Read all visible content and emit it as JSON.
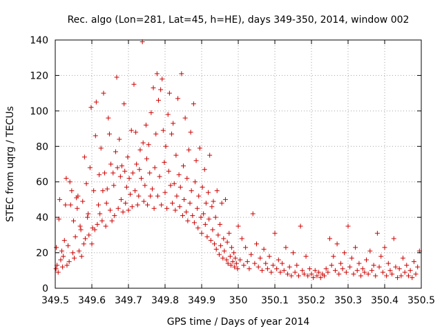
{
  "chart_data": {
    "type": "scatter",
    "title": "Rec. algo (Lon=281, Lat=45, h=HE), days 349-350, 2014, window 002",
    "xlabel": "GPS time / Days of year 2014",
    "ylabel": "STEC from uqrg / TECUs",
    "xlim": [
      349.5,
      350.5
    ],
    "ylim": [
      0,
      140
    ],
    "x_ticks": [
      "349.5",
      "349.6",
      "349.7",
      "349.8",
      "349.9",
      "350",
      "350.1",
      "350.2",
      "350.3",
      "350.4",
      "350.5"
    ],
    "y_ticks": [
      "0",
      "20",
      "40",
      "60",
      "80",
      "100",
      "120",
      "140"
    ],
    "grid": true,
    "marker": "+",
    "marker_color": "#cc0000",
    "series": [
      {
        "points": [
          [
            349.502,
            11
          ],
          [
            349.503,
            23
          ],
          [
            349.505,
            13
          ],
          [
            349.508,
            9
          ],
          [
            349.51,
            39
          ],
          [
            349.512,
            50
          ],
          [
            349.515,
            16
          ],
          [
            349.518,
            21
          ],
          [
            349.52,
            12
          ],
          [
            349.522,
            18
          ],
          [
            349.525,
            27
          ],
          [
            349.528,
            47
          ],
          [
            349.53,
            62
          ],
          [
            349.532,
            13
          ],
          [
            349.535,
            24
          ],
          [
            349.538,
            15
          ],
          [
            349.54,
            60
          ],
          [
            349.542,
            47
          ],
          [
            349.545,
            55
          ],
          [
            349.548,
            20
          ],
          [
            349.55,
            38
          ],
          [
            349.552,
            17
          ],
          [
            349.555,
            29
          ],
          [
            349.558,
            51
          ],
          [
            349.56,
            45
          ],
          [
            349.562,
            52
          ],
          [
            349.565,
            21
          ],
          [
            349.568,
            35
          ],
          [
            349.57,
            33
          ],
          [
            349.572,
            18
          ],
          [
            349.575,
            49
          ],
          [
            349.578,
            25
          ],
          [
            349.58,
            74
          ],
          [
            349.582,
            28
          ],
          [
            349.585,
            59
          ],
          [
            349.588,
            40
          ],
          [
            349.59,
            42
          ],
          [
            349.592,
            30
          ],
          [
            349.595,
            68
          ],
          [
            349.598,
            102
          ],
          [
            349.6,
            25
          ],
          [
            349.602,
            34
          ],
          [
            349.605,
            55
          ],
          [
            349.608,
            33
          ],
          [
            349.61,
            86
          ],
          [
            349.612,
            105
          ],
          [
            349.615,
            36
          ],
          [
            349.618,
            47
          ],
          [
            349.62,
            64
          ],
          [
            349.622,
            42
          ],
          [
            349.625,
            79
          ],
          [
            349.628,
            38
          ],
          [
            349.63,
            55
          ],
          [
            349.632,
            110
          ],
          [
            349.635,
            65
          ],
          [
            349.638,
            35
          ],
          [
            349.64,
            48
          ],
          [
            349.642,
            56
          ],
          [
            349.645,
            96
          ],
          [
            349.648,
            87
          ],
          [
            349.65,
            44
          ],
          [
            349.652,
            70
          ],
          [
            349.655,
            38
          ],
          [
            349.658,
            65
          ],
          [
            349.66,
            58
          ],
          [
            349.662,
            41
          ],
          [
            349.665,
            77
          ],
          [
            349.668,
            119
          ],
          [
            349.67,
            68
          ],
          [
            349.672,
            45
          ],
          [
            349.675,
            84
          ],
          [
            349.678,
            63
          ],
          [
            349.68,
            50
          ],
          [
            349.682,
            69
          ],
          [
            349.685,
            43
          ],
          [
            349.688,
            104
          ],
          [
            349.69,
            66
          ],
          [
            349.692,
            48
          ],
          [
            349.695,
            57
          ],
          [
            349.698,
            74
          ],
          [
            349.7,
            44
          ],
          [
            349.702,
            62
          ],
          [
            349.705,
            53
          ],
          [
            349.708,
            89
          ],
          [
            349.71,
            46
          ],
          [
            349.712,
            65
          ],
          [
            349.715,
            115
          ],
          [
            349.718,
            55
          ],
          [
            349.72,
            88
          ],
          [
            349.722,
            70
          ],
          [
            349.725,
            47
          ],
          [
            349.728,
            52
          ],
          [
            349.73,
            67
          ],
          [
            349.732,
            78
          ],
          [
            349.735,
            62
          ],
          [
            349.738,
            139
          ],
          [
            349.74,
            82
          ],
          [
            349.742,
            49
          ],
          [
            349.745,
            58
          ],
          [
            349.748,
            92
          ],
          [
            349.75,
            73
          ],
          [
            349.752,
            47
          ],
          [
            349.755,
            81
          ],
          [
            349.758,
            65
          ],
          [
            349.76,
            52
          ],
          [
            349.762,
            99
          ],
          [
            349.765,
            56
          ],
          [
            349.768,
            113
          ],
          [
            349.77,
            45
          ],
          [
            349.772,
            68
          ],
          [
            349.775,
            87
          ],
          [
            349.778,
            121
          ],
          [
            349.78,
            52
          ],
          [
            349.782,
            106
          ],
          [
            349.785,
            63
          ],
          [
            349.788,
            112
          ],
          [
            349.79,
            47
          ],
          [
            349.792,
            118
          ],
          [
            349.795,
            89
          ],
          [
            349.798,
            71
          ],
          [
            349.8,
            54
          ],
          [
            349.802,
            80
          ],
          [
            349.805,
            45
          ],
          [
            349.808,
            98
          ],
          [
            349.81,
            66
          ],
          [
            349.812,
            110
          ],
          [
            349.815,
            58
          ],
          [
            349.818,
            87
          ],
          [
            349.82,
            48
          ],
          [
            349.822,
            93
          ],
          [
            349.825,
            59
          ],
          [
            349.828,
            44
          ],
          [
            349.83,
            75
          ],
          [
            349.832,
            52
          ],
          [
            349.835,
            107
          ],
          [
            349.838,
            64
          ],
          [
            349.84,
            46
          ],
          [
            349.842,
            57
          ],
          [
            349.845,
            121
          ],
          [
            349.848,
            41
          ],
          [
            349.85,
            69
          ],
          [
            349.852,
            50
          ],
          [
            349.855,
            96
          ],
          [
            349.858,
            43
          ],
          [
            349.86,
            62
          ],
          [
            349.862,
            38
          ],
          [
            349.865,
            78
          ],
          [
            349.868,
            48
          ],
          [
            349.87,
            88
          ],
          [
            349.872,
            55
          ],
          [
            349.875,
            41
          ],
          [
            349.878,
            104
          ],
          [
            349.88,
            37
          ],
          [
            349.882,
            60
          ],
          [
            349.885,
            72
          ],
          [
            349.888,
            45
          ],
          [
            349.89,
            34
          ],
          [
            349.892,
            52
          ],
          [
            349.895,
            79
          ],
          [
            349.898,
            40
          ],
          [
            349.9,
            31
          ],
          [
            349.902,
            57
          ],
          [
            349.905,
            42
          ],
          [
            349.908,
            67
          ],
          [
            349.91,
            36
          ],
          [
            349.912,
            48
          ],
          [
            349.915,
            29
          ],
          [
            349.918,
            54
          ],
          [
            349.92,
            39
          ],
          [
            349.922,
            75
          ],
          [
            349.925,
            27
          ],
          [
            349.928,
            46
          ],
          [
            349.93,
            33
          ],
          [
            349.932,
            49
          ],
          [
            349.935,
            25
          ],
          [
            349.938,
            40
          ],
          [
            349.94,
            22
          ],
          [
            349.942,
            55
          ],
          [
            349.945,
            30
          ],
          [
            349.948,
            19
          ],
          [
            349.95,
            36
          ],
          [
            349.952,
            24
          ],
          [
            349.955,
            48
          ],
          [
            349.958,
            17
          ],
          [
            349.96,
            28
          ],
          [
            349.962,
            21
          ],
          [
            349.965,
            50
          ],
          [
            349.968,
            16
          ],
          [
            349.97,
            26
          ],
          [
            349.972,
            14
          ],
          [
            349.975,
            31
          ],
          [
            349.978,
            18
          ],
          [
            349.98,
            13
          ],
          [
            349.982,
            23
          ],
          [
            349.985,
            15
          ],
          [
            349.988,
            20
          ],
          [
            349.99,
            12
          ],
          [
            349.992,
            17
          ],
          [
            349.995,
            14
          ],
          [
            349.998,
            11
          ],
          [
            350.0,
            35
          ],
          [
            350.005,
            16
          ],
          [
            350.01,
            28
          ],
          [
            350.015,
            13
          ],
          [
            350.02,
            23
          ],
          [
            350.025,
            15
          ],
          [
            350.03,
            11
          ],
          [
            350.035,
            19
          ],
          [
            350.04,
            42
          ],
          [
            350.045,
            14
          ],
          [
            350.05,
            25
          ],
          [
            350.055,
            12
          ],
          [
            350.06,
            17
          ],
          [
            350.065,
            10
          ],
          [
            350.07,
            22
          ],
          [
            350.075,
            14
          ],
          [
            350.08,
            11
          ],
          [
            350.085,
            18
          ],
          [
            350.09,
            9
          ],
          [
            350.095,
            13
          ],
          [
            350.1,
            31
          ],
          [
            350.105,
            11
          ],
          [
            350.11,
            16
          ],
          [
            350.115,
            9
          ],
          [
            350.12,
            14
          ],
          [
            350.125,
            10
          ],
          [
            350.13,
            23
          ],
          [
            350.135,
            8
          ],
          [
            350.14,
            12
          ],
          [
            350.145,
            7
          ],
          [
            350.15,
            20
          ],
          [
            350.155,
            9
          ],
          [
            350.16,
            13
          ],
          [
            350.165,
            7
          ],
          [
            350.17,
            35
          ],
          [
            350.175,
            10
          ],
          [
            350.18,
            8
          ],
          [
            350.185,
            18
          ],
          [
            350.19,
            7
          ],
          [
            350.195,
            11
          ],
          [
            350.2,
            8
          ],
          [
            350.205,
            6
          ],
          [
            350.21,
            10
          ],
          [
            350.215,
            7
          ],
          [
            350.22,
            9
          ],
          [
            350.225,
            6
          ],
          [
            350.23,
            8
          ],
          [
            350.235,
            7
          ],
          [
            350.24,
            11
          ],
          [
            350.245,
            9
          ],
          [
            350.25,
            28
          ],
          [
            350.255,
            13
          ],
          [
            350.26,
            18
          ],
          [
            350.265,
            10
          ],
          [
            350.27,
            25
          ],
          [
            350.275,
            8
          ],
          [
            350.28,
            14
          ],
          [
            350.285,
            11
          ],
          [
            350.29,
            20
          ],
          [
            350.295,
            9
          ],
          [
            350.3,
            35
          ],
          [
            350.305,
            12
          ],
          [
            350.31,
            17
          ],
          [
            350.315,
            8
          ],
          [
            350.32,
            23
          ],
          [
            350.325,
            10
          ],
          [
            350.33,
            14
          ],
          [
            350.335,
            7
          ],
          [
            350.34,
            11
          ],
          [
            350.345,
            9
          ],
          [
            350.35,
            16
          ],
          [
            350.355,
            8
          ],
          [
            350.36,
            21
          ],
          [
            350.365,
            10
          ],
          [
            350.37,
            13
          ],
          [
            350.375,
            7
          ],
          [
            350.38,
            31
          ],
          [
            350.385,
            12
          ],
          [
            350.39,
            18
          ],
          [
            350.395,
            9
          ],
          [
            350.4,
            23
          ],
          [
            350.405,
            7
          ],
          [
            350.41,
            14
          ],
          [
            350.415,
            10
          ],
          [
            350.42,
            8
          ],
          [
            350.425,
            28
          ],
          [
            350.43,
            12
          ],
          [
            350.435,
            6
          ],
          [
            350.44,
            11
          ],
          [
            350.445,
            7
          ],
          [
            350.45,
            17
          ],
          [
            350.455,
            9
          ],
          [
            350.46,
            13
          ],
          [
            350.465,
            7
          ],
          [
            350.47,
            10
          ],
          [
            350.475,
            6
          ],
          [
            350.48,
            15
          ],
          [
            350.485,
            8
          ],
          [
            350.49,
            12
          ],
          [
            350.495,
            21
          ]
        ]
      }
    ]
  }
}
